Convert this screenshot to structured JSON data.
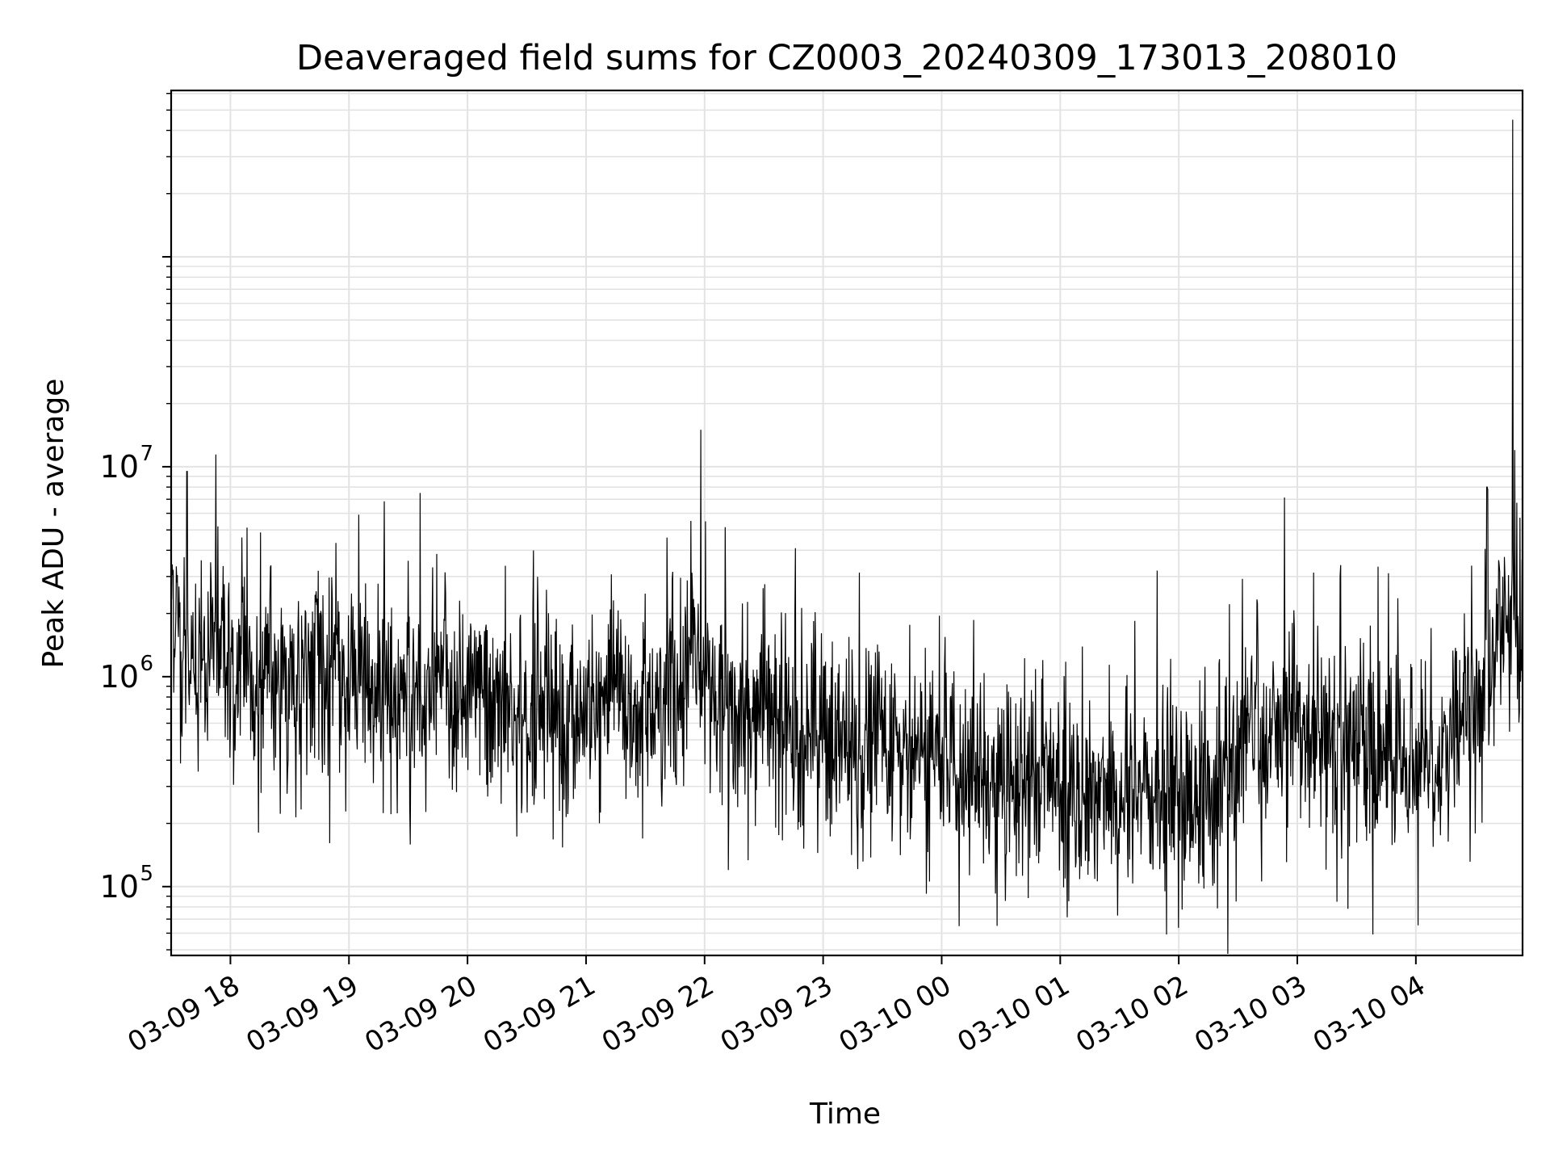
{
  "chart_data": {
    "type": "line",
    "title": "Deaveraged field sums for CZ0003_20240309_173013_208010",
    "xlabel": "Time",
    "ylabel": "Peak ADU - average",
    "yscale": "log",
    "xlim": [
      "03-09 17:30",
      "03-10 04:54"
    ],
    "ylim": [
      47000,
      620000000
    ],
    "grid": true,
    "line_color": "#000000",
    "x_ticks": [
      "03-09 18",
      "03-09 19",
      "03-09 20",
      "03-09 21",
      "03-09 22",
      "03-09 23",
      "03-10 00",
      "03-10 01",
      "03-10 02",
      "03-10 03",
      "03-10 04"
    ],
    "y_ticks": [
      {
        "base": "10",
        "exp": "5",
        "value": 100000
      },
      {
        "base": "10",
        "exp": "6",
        "value": 1000000
      },
      {
        "base": "10",
        "exp": "7",
        "value": 10000000
      }
    ],
    "series": [
      {
        "x": [
          "03-09 17:30",
          "03-09 17:36",
          "03-09 17:42",
          "03-09 17:48",
          "03-09 17:54",
          "03-09 18:00",
          "03-09 18:06",
          "03-09 18:12",
          "03-09 18:18",
          "03-09 18:24",
          "03-09 18:30",
          "03-09 18:36",
          "03-09 18:42",
          "03-09 18:48",
          "03-09 18:54",
          "03-09 19:00",
          "03-09 19:06",
          "03-09 19:12",
          "03-09 19:18",
          "03-09 19:24",
          "03-09 19:30",
          "03-09 19:36",
          "03-09 19:42",
          "03-09 19:48",
          "03-09 19:54",
          "03-09 20:00",
          "03-09 20:06",
          "03-09 20:12",
          "03-09 20:18",
          "03-09 20:24",
          "03-09 20:30",
          "03-09 20:36",
          "03-09 20:42",
          "03-09 20:48",
          "03-09 20:54",
          "03-09 21:00",
          "03-09 21:06",
          "03-09 21:12",
          "03-09 21:18",
          "03-09 21:24",
          "03-09 21:30",
          "03-09 21:36",
          "03-09 21:42",
          "03-09 21:48",
          "03-09 21:54",
          "03-09 22:00",
          "03-09 22:06",
          "03-09 22:12",
          "03-09 22:18",
          "03-09 22:24",
          "03-09 22:30",
          "03-09 22:36",
          "03-09 22:42",
          "03-09 22:48",
          "03-09 22:54",
          "03-09 23:00",
          "03-09 23:06",
          "03-09 23:12",
          "03-09 23:18",
          "03-09 23:24",
          "03-09 23:30",
          "03-09 23:36",
          "03-09 23:42",
          "03-09 23:48",
          "03-09 23:54",
          "03-10 00:00",
          "03-10 00:06",
          "03-10 00:12",
          "03-10 00:18",
          "03-10 00:24",
          "03-10 00:30",
          "03-10 00:36",
          "03-10 00:42",
          "03-10 00:48",
          "03-10 00:54",
          "03-10 01:00",
          "03-10 01:06",
          "03-10 01:12",
          "03-10 01:18",
          "03-10 01:24",
          "03-10 01:30",
          "03-10 01:36",
          "03-10 01:42",
          "03-10 01:48",
          "03-10 01:54",
          "03-10 02:00",
          "03-10 02:06",
          "03-10 02:12",
          "03-10 02:18",
          "03-10 02:24",
          "03-10 02:30",
          "03-10 02:36",
          "03-10 02:42",
          "03-10 02:48",
          "03-10 02:54",
          "03-10 03:00",
          "03-10 03:06",
          "03-10 03:12",
          "03-10 03:18",
          "03-10 03:24",
          "03-10 03:30",
          "03-10 03:36",
          "03-10 03:42",
          "03-10 03:48",
          "03-10 03:54",
          "03-10 04:00",
          "03-10 04:06",
          "03-10 04:12",
          "03-10 04:18",
          "03-10 04:24",
          "03-10 04:30",
          "03-10 04:36",
          "03-10 04:42",
          "03-10 04:48",
          "03-10 04:54"
        ],
        "y": [
          3000000,
          1300000,
          1000000,
          1200000,
          2500000,
          900000,
          1500000,
          800000,
          1200000,
          700000,
          1100000,
          900000,
          1300000,
          800000,
          1000000,
          700000,
          1200000,
          600000,
          900000,
          700000,
          1100000,
          600000,
          800000,
          1000000,
          650000,
          700000,
          900000,
          600000,
          800000,
          700000,
          600000,
          650000,
          800000,
          500000,
          700000,
          850000,
          600000,
          900000,
          700000,
          550000,
          800000,
          650000,
          900000,
          750000,
          1000000,
          800000,
          900000,
          650000,
          700000,
          600000,
          650000,
          550000,
          700000,
          500000,
          600000,
          500000,
          450000,
          600000,
          400000,
          500000,
          450000,
          400000,
          350000,
          500000,
          400000,
          350000,
          400000,
          300000,
          380000,
          350000,
          320000,
          300000,
          400000,
          280000,
          350000,
          300000,
          260000,
          320000,
          280000,
          300000,
          250000,
          280000,
          300000,
          260000,
          240000,
          280000,
          250000,
          220000,
          300000,
          260000,
          400000,
          500000,
          450000,
          600000,
          700000,
          550000,
          500000,
          600000,
          450000,
          500000,
          600000,
          450000,
          400000,
          500000,
          350000,
          550000,
          450000,
          400000,
          500000,
          600000,
          700000,
          1200000,
          1500000,
          2000000,
          1500000
        ],
        "spikes": [
          {
            "x": "03-09 17:38",
            "y": 9500000
          },
          {
            "x": "03-09 19:36",
            "y": 7500000
          },
          {
            "x": "03-09 21:58",
            "y": 15000000
          },
          {
            "x": "03-09 21:41",
            "y": 4600000
          },
          {
            "x": "03-10 01:49",
            "y": 3200000
          },
          {
            "x": "03-10 00:28",
            "y": 65000
          },
          {
            "x": "03-10 04:36",
            "y": 8000000
          },
          {
            "x": "03-10 04:49",
            "y": 450000000
          },
          {
            "x": "03-10 04:50",
            "y": 12000000
          }
        ]
      }
    ]
  }
}
